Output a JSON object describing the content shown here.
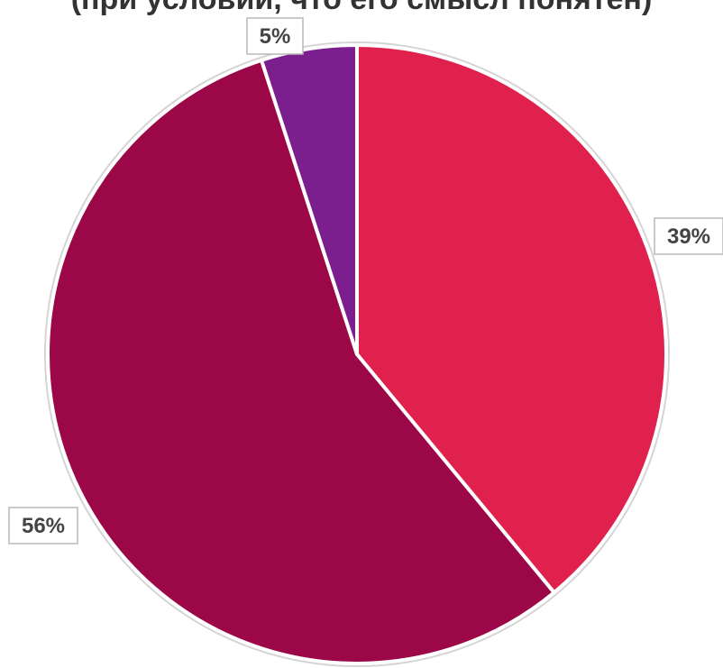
{
  "title": "(при условии, что его смысл понятен)",
  "chart_data": {
    "type": "pie",
    "title": "(при условии, что его смысл понятен)",
    "slices": [
      {
        "value": 39,
        "label": "39%",
        "color": "#e0204d"
      },
      {
        "value": 56,
        "label": "56%",
        "color": "#9b0747"
      },
      {
        "value": 5,
        "label": "5%",
        "color": "#7b1f8f"
      }
    ],
    "start": "12 o'clock",
    "direction": "clockwise",
    "legend": "none",
    "slice_border_color": "#ffffff"
  }
}
